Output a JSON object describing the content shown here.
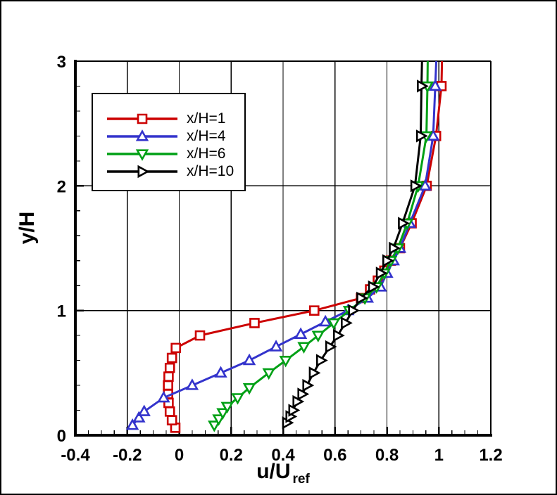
{
  "chart_data": {
    "type": "line",
    "title": "",
    "xlabel": "u/U_ref",
    "xlabel_main": "u/U",
    "xlabel_sub": "ref",
    "ylabel": "y/H",
    "xlim": [
      -0.4,
      1.2
    ],
    "ylim": [
      0,
      3
    ],
    "x_major_ticks": [
      -0.4,
      -0.2,
      0,
      0.2,
      0.4,
      0.6,
      0.8,
      1,
      1.2
    ],
    "x_tick_labels": [
      "-0.4",
      "-0.2",
      "0",
      "0.2",
      "0.4",
      "0.6",
      "0.8",
      "1",
      "1.2"
    ],
    "x_minor_step": 0.05,
    "y_major_ticks": [
      0,
      1,
      2,
      3
    ],
    "y_tick_labels": [
      "0",
      "1",
      "2",
      "3"
    ],
    "y_minor_step": 0.2,
    "grid": true,
    "legend_position": "upper-left",
    "marker_clip_y": 2.85,
    "series": [
      {
        "name": "x/H=1",
        "label": "x/H=1",
        "color": "#cc0000",
        "marker": "square",
        "points": [
          [
            -0.015,
            0.06
          ],
          [
            -0.028,
            0.12
          ],
          [
            -0.036,
            0.19
          ],
          [
            -0.041,
            0.26
          ],
          [
            -0.043,
            0.33
          ],
          [
            -0.043,
            0.4
          ],
          [
            -0.041,
            0.47
          ],
          [
            -0.036,
            0.54
          ],
          [
            -0.028,
            0.62
          ],
          [
            -0.013,
            0.7
          ],
          [
            0.08,
            0.8
          ],
          [
            0.29,
            0.9
          ],
          [
            0.52,
            1.0
          ],
          [
            0.7,
            1.1
          ],
          [
            0.735,
            1.17
          ],
          [
            0.765,
            1.24
          ],
          [
            0.79,
            1.32
          ],
          [
            0.815,
            1.4
          ],
          [
            0.85,
            1.5
          ],
          [
            0.895,
            1.7
          ],
          [
            0.953,
            2.0
          ],
          [
            0.989,
            2.4
          ],
          [
            1.01,
            2.8
          ],
          [
            1.012,
            3.0
          ]
        ]
      },
      {
        "name": "x/H=4",
        "label": "x/H=4",
        "color": "#3333cc",
        "marker": "triangle-up",
        "points": [
          [
            -0.18,
            0.08
          ],
          [
            -0.155,
            0.14
          ],
          [
            -0.135,
            0.19
          ],
          [
            -0.06,
            0.3
          ],
          [
            0.05,
            0.4
          ],
          [
            0.16,
            0.5
          ],
          [
            0.27,
            0.6
          ],
          [
            0.373,
            0.71
          ],
          [
            0.468,
            0.81
          ],
          [
            0.563,
            0.91
          ],
          [
            0.65,
            1.0
          ],
          [
            0.725,
            1.1
          ],
          [
            0.775,
            1.19
          ],
          [
            0.8,
            1.3
          ],
          [
            0.825,
            1.4
          ],
          [
            0.85,
            1.5
          ],
          [
            0.888,
            1.7
          ],
          [
            0.947,
            2.0
          ],
          [
            0.978,
            2.4
          ],
          [
            0.986,
            2.8
          ],
          [
            0.99,
            3.0
          ]
        ]
      },
      {
        "name": "x/H=6",
        "label": "x/H=6",
        "color": "#00a015",
        "marker": "triangle-down",
        "points": [
          [
            0.135,
            0.08
          ],
          [
            0.152,
            0.13
          ],
          [
            0.168,
            0.18
          ],
          [
            0.185,
            0.23
          ],
          [
            0.225,
            0.3
          ],
          [
            0.27,
            0.38
          ],
          [
            0.345,
            0.5
          ],
          [
            0.41,
            0.6
          ],
          [
            0.48,
            0.71
          ],
          [
            0.535,
            0.8
          ],
          [
            0.595,
            0.9
          ],
          [
            0.655,
            1.0
          ],
          [
            0.715,
            1.1
          ],
          [
            0.76,
            1.19
          ],
          [
            0.79,
            1.3
          ],
          [
            0.815,
            1.4
          ],
          [
            0.842,
            1.5
          ],
          [
            0.878,
            1.7
          ],
          [
            0.92,
            2.0
          ],
          [
            0.952,
            2.4
          ],
          [
            0.956,
            2.8
          ],
          [
            0.957,
            3.0
          ]
        ]
      },
      {
        "name": "x/H=10",
        "label": "x/H=10",
        "color": "#000000",
        "marker": "triangle-right",
        "points": [
          [
            0.414,
            0.1
          ],
          [
            0.427,
            0.15
          ],
          [
            0.438,
            0.2
          ],
          [
            0.454,
            0.27
          ],
          [
            0.473,
            0.33
          ],
          [
            0.492,
            0.4
          ],
          [
            0.517,
            0.5
          ],
          [
            0.545,
            0.6
          ],
          [
            0.58,
            0.71
          ],
          [
            0.61,
            0.8
          ],
          [
            0.64,
            0.9
          ],
          [
            0.668,
            1.0
          ],
          [
            0.7,
            1.1
          ],
          [
            0.745,
            1.19
          ],
          [
            0.775,
            1.3
          ],
          [
            0.8,
            1.4
          ],
          [
            0.825,
            1.5
          ],
          [
            0.86,
            1.7
          ],
          [
            0.908,
            2.0
          ],
          [
            0.93,
            2.4
          ],
          [
            0.933,
            2.8
          ],
          [
            0.935,
            3.0
          ]
        ]
      }
    ]
  }
}
